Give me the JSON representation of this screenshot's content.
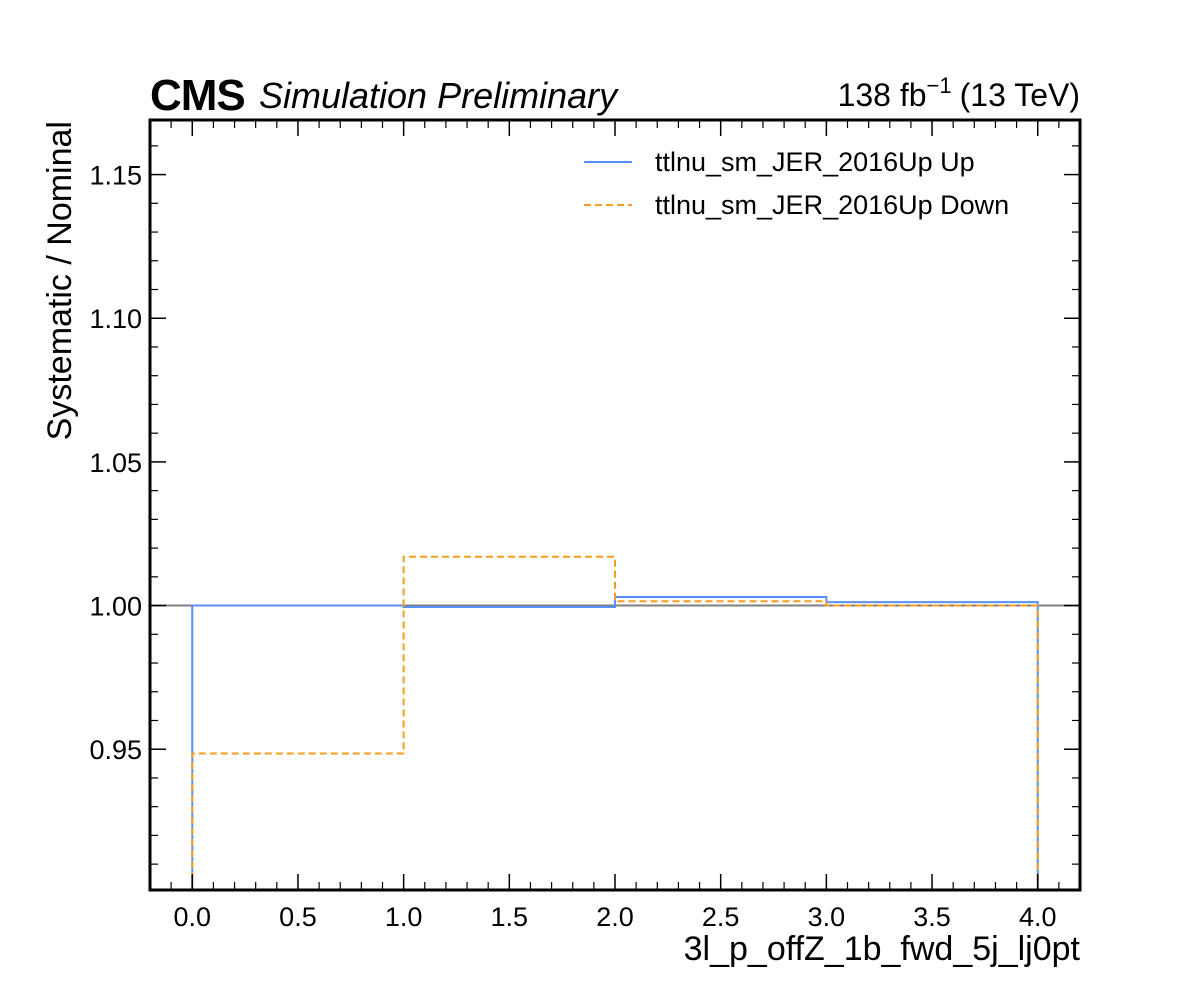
{
  "header": {
    "experiment": "CMS",
    "status": "Simulation Preliminary",
    "lumi_value": "138 fb",
    "lumi_exp": "−1",
    "lumi_energy": "(13 TeV)"
  },
  "chart_data": {
    "type": "line",
    "drawstyle": "step",
    "xlabel": "3l_p_offZ_1b_fwd_5j_lj0pt",
    "ylabel": "Systematic / Nominal",
    "xlim": [
      -0.2,
      4.2
    ],
    "ylim": [
      0.901,
      1.169
    ],
    "xticks": [
      "0.0",
      "0.5",
      "1.0",
      "1.5",
      "2.0",
      "2.5",
      "3.0",
      "3.5",
      "4.0"
    ],
    "xtick_values": [
      0,
      0.5,
      1,
      1.5,
      2,
      2.5,
      3,
      3.5,
      4
    ],
    "yticks": [
      "0.95",
      "1.00",
      "1.05",
      "1.10",
      "1.15"
    ],
    "ytick_values": [
      0.95,
      1.0,
      1.05,
      1.1,
      1.15
    ],
    "reference_line": 1.0,
    "bin_edges": [
      0,
      1,
      2,
      3,
      4
    ],
    "series": [
      {
        "name": "ttlnu_sm_JER_2016Up Up",
        "values": [
          1.0,
          0.9995,
          1.003,
          1.0012
        ],
        "color": "#5790fc",
        "dash": "solid"
      },
      {
        "name": "ttlnu_sm_JER_2016Up Down",
        "values": [
          0.9485,
          1.017,
          1.0015,
          1.0
        ],
        "color": "#f89c20",
        "dash": "dashed"
      }
    ],
    "legend_position": "top-right",
    "reference_color": "#808080"
  }
}
